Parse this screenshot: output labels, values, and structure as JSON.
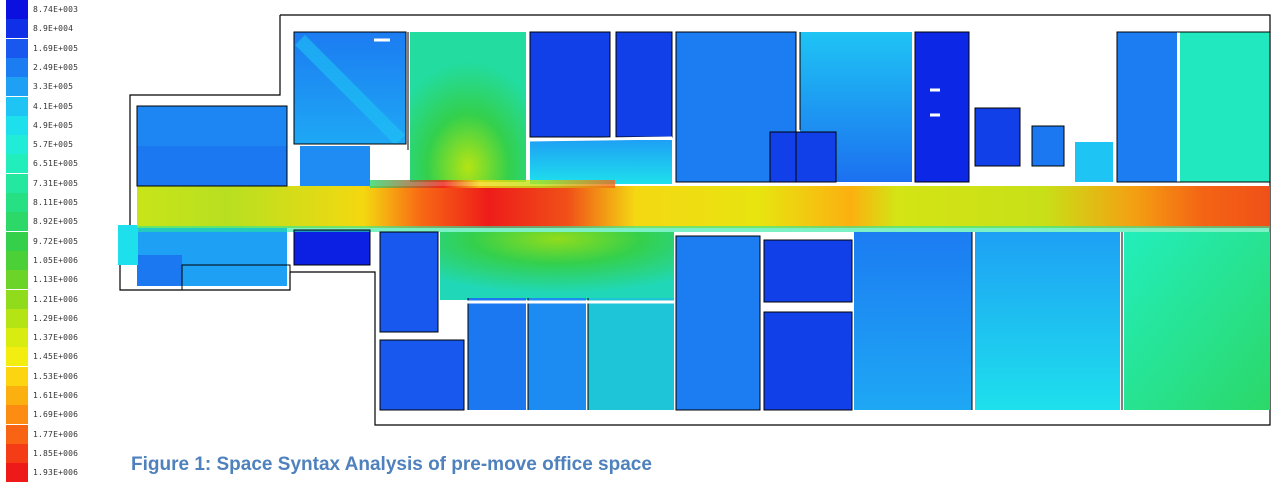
{
  "legend": {
    "entries": [
      {
        "label": "8.74E+003",
        "color": "#0a10e0"
      },
      {
        "label": "8.9E+004",
        "color": "#1030e8"
      },
      {
        "label": "1.69E+005",
        "color": "#1858ee"
      },
      {
        "label": "2.49E+005",
        "color": "#1c7cf2"
      },
      {
        "label": "3.3E+005",
        "color": "#1ea0f5"
      },
      {
        "label": "4.1E+005",
        "color": "#1ec4f4"
      },
      {
        "label": "4.9E+005",
        "color": "#1ee0ec"
      },
      {
        "label": "5.7E+005",
        "color": "#20ecd8"
      },
      {
        "label": "6.51E+005",
        "color": "#22eebc"
      },
      {
        "label": "7.31E+005",
        "color": "#24e8a0"
      },
      {
        "label": "8.11E+005",
        "color": "#28e084"
      },
      {
        "label": "8.92E+005",
        "color": "#2cd868"
      },
      {
        "label": "9.72E+005",
        "color": "#34d04c"
      },
      {
        "label": "1.05E+006",
        "color": "#4cd038"
      },
      {
        "label": "1.13E+006",
        "color": "#6cd428"
      },
      {
        "label": "1.21E+006",
        "color": "#90dc1c"
      },
      {
        "label": "1.29E+006",
        "color": "#b4e414"
      },
      {
        "label": "1.37E+006",
        "color": "#d8ec10"
      },
      {
        "label": "1.45E+006",
        "color": "#f4ee10"
      },
      {
        "label": "1.53E+006",
        "color": "#fcd410"
      },
      {
        "label": "1.61E+006",
        "color": "#fcb010"
      },
      {
        "label": "1.69E+006",
        "color": "#fc8c12"
      },
      {
        "label": "1.77E+006",
        "color": "#f86414"
      },
      {
        "label": "1.85E+006",
        "color": "#f43c16"
      },
      {
        "label": "1.93E+006",
        "color": "#ee1a1a"
      }
    ]
  },
  "caption": "Figure 1: Space Syntax Analysis of pre-move office space"
}
